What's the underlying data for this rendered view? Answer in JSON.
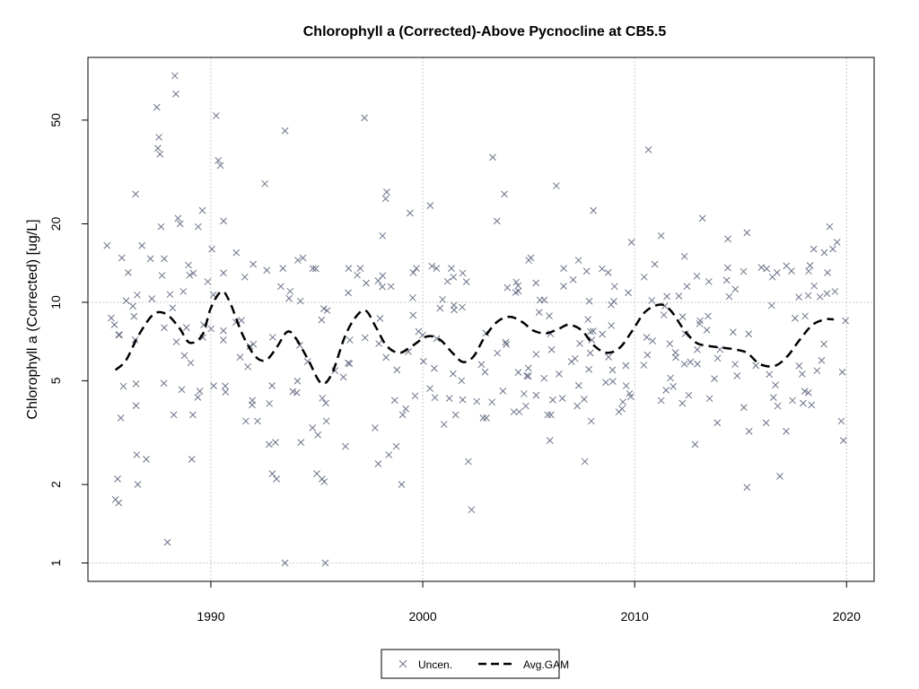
{
  "chart_data": {
    "type": "scatter",
    "title": "Chlorophyll a (Corrected)-Above Pycnocline at CB5.5",
    "xlabel": "",
    "ylabel": "Chlorophyll a (Corrected) [ug/L]",
    "xlim": [
      1984.2,
      2021.3
    ],
    "ylim": [
      0.85,
      87
    ],
    "y_scale": "log",
    "x_ticks": [
      1990,
      2000,
      2010,
      2020
    ],
    "y_ticks": [
      1,
      2,
      5,
      10,
      20,
      50
    ],
    "grid": true,
    "legend_position": "bottom-center",
    "series": [
      {
        "name": "Uncen.",
        "marker": "x",
        "color": "#6b7389",
        "style": "points",
        "values": [
          [
            1985.1,
            16.5
          ],
          [
            1985.3,
            8.7
          ],
          [
            1985.45,
            8.2
          ],
          [
            1985.65,
            7.5
          ],
          [
            1985.8,
            14.8
          ],
          [
            1986.1,
            13.0
          ],
          [
            1986.45,
            26.0
          ],
          [
            1986.75,
            16.5
          ],
          [
            1987.15,
            14.7
          ],
          [
            1987.45,
            56.0
          ],
          [
            1987.55,
            43.0
          ],
          [
            1987.5,
            39.0
          ],
          [
            1987.6,
            37.0
          ],
          [
            1987.65,
            19.5
          ],
          [
            1987.8,
            14.7
          ],
          [
            1988.3,
            74.0
          ],
          [
            1988.35,
            63.0
          ],
          [
            1988.45,
            21.0
          ],
          [
            1988.55,
            20.0
          ],
          [
            1988.7,
            11.0
          ],
          [
            1988.85,
            8.0
          ],
          [
            1989.4,
            19.5
          ],
          [
            1989.6,
            22.5
          ],
          [
            1989.85,
            12.0
          ],
          [
            1990.05,
            16.0
          ],
          [
            1990.25,
            52.0
          ],
          [
            1990.35,
            35.0
          ],
          [
            1990.45,
            33.5
          ],
          [
            1990.6,
            20.5
          ],
          [
            1991.2,
            15.5
          ],
          [
            1991.6,
            12.5
          ],
          [
            1992.0,
            14.0
          ],
          [
            1992.55,
            28.5
          ],
          [
            1993.5,
            45.5
          ],
          [
            1993.4,
            13.5
          ],
          [
            1993.3,
            11.5
          ],
          [
            1994.1,
            14.5
          ],
          [
            1994.35,
            14.8
          ],
          [
            1997.25,
            51.0
          ],
          [
            1997.05,
            13.5
          ],
          [
            1996.5,
            13.5
          ],
          [
            1998.1,
            18.0
          ],
          [
            1998.3,
            26.5
          ],
          [
            1998.25,
            25.0
          ],
          [
            1998.5,
            11.5
          ],
          [
            1999.4,
            22.0
          ],
          [
            1999.55,
            13.0
          ],
          [
            1999.7,
            13.5
          ],
          [
            2000.35,
            23.5
          ],
          [
            2000.65,
            13.5
          ],
          [
            2001.35,
            13.5
          ],
          [
            2001.45,
            12.5
          ],
          [
            2003.3,
            36.0
          ],
          [
            2003.5,
            20.5
          ],
          [
            2003.85,
            26.0
          ],
          [
            2005.0,
            14.5
          ],
          [
            2005.1,
            14.8
          ],
          [
            2006.3,
            28.0
          ],
          [
            2006.65,
            13.5
          ],
          [
            2007.35,
            14.5
          ],
          [
            2008.05,
            22.5
          ],
          [
            2008.75,
            13.0
          ],
          [
            2009.05,
            11.5
          ],
          [
            2009.85,
            17.0
          ],
          [
            2010.65,
            38.5
          ],
          [
            2010.45,
            12.5
          ],
          [
            2010.95,
            14.0
          ],
          [
            2011.25,
            18.0
          ],
          [
            2012.35,
            15.0
          ],
          [
            2013.2,
            21.0
          ],
          [
            2013.5,
            12.0
          ],
          [
            2014.4,
            17.5
          ],
          [
            2015.3,
            18.5
          ],
          [
            2016.5,
            12.5
          ],
          [
            2018.45,
            16.0
          ],
          [
            2018.75,
            10.5
          ],
          [
            2018.95,
            15.5
          ],
          [
            2019.2,
            19.5
          ],
          [
            2019.35,
            16.0
          ],
          [
            2019.55,
            17.0
          ],
          [
            2019.45,
            11.0
          ],
          [
            2019.1,
            13.0
          ],
          [
            1985.5,
            1.75
          ],
          [
            1985.6,
            2.1
          ],
          [
            1985.65,
            1.7
          ],
          [
            1987.95,
            1.2
          ],
          [
            1986.55,
            2.0
          ],
          [
            1993.5,
            1.0
          ],
          [
            1995.4,
            1.0
          ],
          [
            1992.9,
            2.2
          ],
          [
            1993.1,
            2.1
          ],
          [
            1995.0,
            2.2
          ],
          [
            1995.25,
            2.1
          ],
          [
            1995.35,
            2.05
          ],
          [
            1999.0,
            2.0
          ],
          [
            1998.4,
            2.6
          ],
          [
            1997.9,
            2.4
          ],
          [
            2002.15,
            2.45
          ],
          [
            2002.3,
            1.6
          ],
          [
            2007.65,
            2.45
          ],
          [
            2012.85,
            2.85
          ],
          [
            2015.3,
            1.95
          ],
          [
            2016.85,
            2.15
          ],
          [
            2017.15,
            3.2
          ],
          [
            2019.85,
            2.95
          ],
          [
            2019.75,
            3.5
          ],
          [
            2019.8,
            5.4
          ],
          [
            2019.95,
            8.5
          ],
          [
            2015.4,
            3.2
          ],
          [
            2006.0,
            2.95
          ],
          [
            1996.35,
            2.8
          ],
          [
            1985.75,
            3.6
          ],
          [
            1986.5,
            2.6
          ],
          [
            1986.95,
            2.5
          ],
          [
            1988.25,
            3.7
          ],
          [
            1989.15,
            3.7
          ],
          [
            1989.1,
            2.5
          ],
          [
            1991.65,
            3.5
          ],
          [
            1992.2,
            3.5
          ],
          [
            1992.75,
            2.85
          ],
          [
            1993.05,
            2.9
          ],
          [
            1994.05,
            4.5
          ],
          [
            1994.25,
            2.9
          ],
          [
            1994.8,
            3.3
          ],
          [
            1995.05,
            3.1
          ],
          [
            1995.45,
            3.5
          ],
          [
            1997.75,
            3.3
          ],
          [
            1998.75,
            2.8
          ],
          [
            1999.05,
            3.7
          ],
          [
            1999.2,
            3.9
          ],
          [
            2001.0,
            3.4
          ],
          [
            2001.55,
            3.7
          ],
          [
            2002.85,
            3.6
          ],
          [
            2003.0,
            3.6
          ],
          [
            2004.3,
            3.8
          ],
          [
            2004.55,
            3.8
          ],
          [
            2005.9,
            3.7
          ],
          [
            2006.05,
            3.7
          ],
          [
            2007.95,
            3.5
          ],
          [
            2009.25,
            3.8
          ],
          [
            2009.4,
            3.9
          ],
          [
            2011.25,
            4.2
          ],
          [
            2012.25,
            4.1
          ],
          [
            2012.55,
            4.4
          ],
          [
            2013.9,
            3.45
          ],
          [
            2015.15,
            3.95
          ],
          [
            2016.2,
            3.45
          ],
          [
            2016.75,
            4.0
          ],
          [
            2017.45,
            4.2
          ],
          [
            2017.95,
            4.1
          ],
          [
            2018.2,
            4.5
          ]
        ]
      },
      {
        "name": "Avg.GAM",
        "style": "dashed-line",
        "color": "#000000",
        "values": [
          [
            1985.5,
            5.5
          ],
          [
            1986.0,
            6.0
          ],
          [
            1986.6,
            7.5
          ],
          [
            1987.3,
            9.0
          ],
          [
            1987.9,
            9.0
          ],
          [
            1988.5,
            8.0
          ],
          [
            1989.0,
            7.0
          ],
          [
            1989.6,
            7.5
          ],
          [
            1990.0,
            9.5
          ],
          [
            1990.5,
            11.0
          ],
          [
            1990.9,
            10.0
          ],
          [
            1991.5,
            7.5
          ],
          [
            1992.1,
            6.2
          ],
          [
            1992.6,
            6.0
          ],
          [
            1993.1,
            6.7
          ],
          [
            1993.6,
            7.7
          ],
          [
            1994.0,
            7.3
          ],
          [
            1994.6,
            6.0
          ],
          [
            1995.2,
            4.9
          ],
          [
            1995.7,
            5.3
          ],
          [
            1996.3,
            7.3
          ],
          [
            1996.8,
            8.7
          ],
          [
            1997.3,
            9.3
          ],
          [
            1997.8,
            8.0
          ],
          [
            1998.3,
            6.8
          ],
          [
            1998.9,
            6.4
          ],
          [
            1999.5,
            6.8
          ],
          [
            2000.2,
            7.4
          ],
          [
            2000.8,
            7.2
          ],
          [
            2001.4,
            6.4
          ],
          [
            2001.9,
            5.9
          ],
          [
            2002.4,
            6.2
          ],
          [
            2002.9,
            7.3
          ],
          [
            2003.5,
            8.4
          ],
          [
            2004.1,
            8.8
          ],
          [
            2004.7,
            8.4
          ],
          [
            2005.2,
            7.8
          ],
          [
            2005.8,
            7.6
          ],
          [
            2006.4,
            7.9
          ],
          [
            2006.9,
            8.2
          ],
          [
            2007.5,
            7.8
          ],
          [
            2008.1,
            6.8
          ],
          [
            2008.7,
            6.4
          ],
          [
            2009.3,
            6.7
          ],
          [
            2009.9,
            7.8
          ],
          [
            2010.5,
            9.2
          ],
          [
            2011.2,
            9.8
          ],
          [
            2011.7,
            9.3
          ],
          [
            2012.3,
            7.9
          ],
          [
            2012.9,
            7.0
          ],
          [
            2013.5,
            6.8
          ],
          [
            2014.1,
            6.7
          ],
          [
            2014.7,
            6.6
          ],
          [
            2015.3,
            6.4
          ],
          [
            2015.9,
            5.8
          ],
          [
            2016.6,
            5.7
          ],
          [
            2017.2,
            6.2
          ],
          [
            2017.8,
            7.2
          ],
          [
            2018.4,
            8.2
          ],
          [
            2019.0,
            8.6
          ],
          [
            2019.4,
            8.6
          ]
        ]
      }
    ]
  }
}
